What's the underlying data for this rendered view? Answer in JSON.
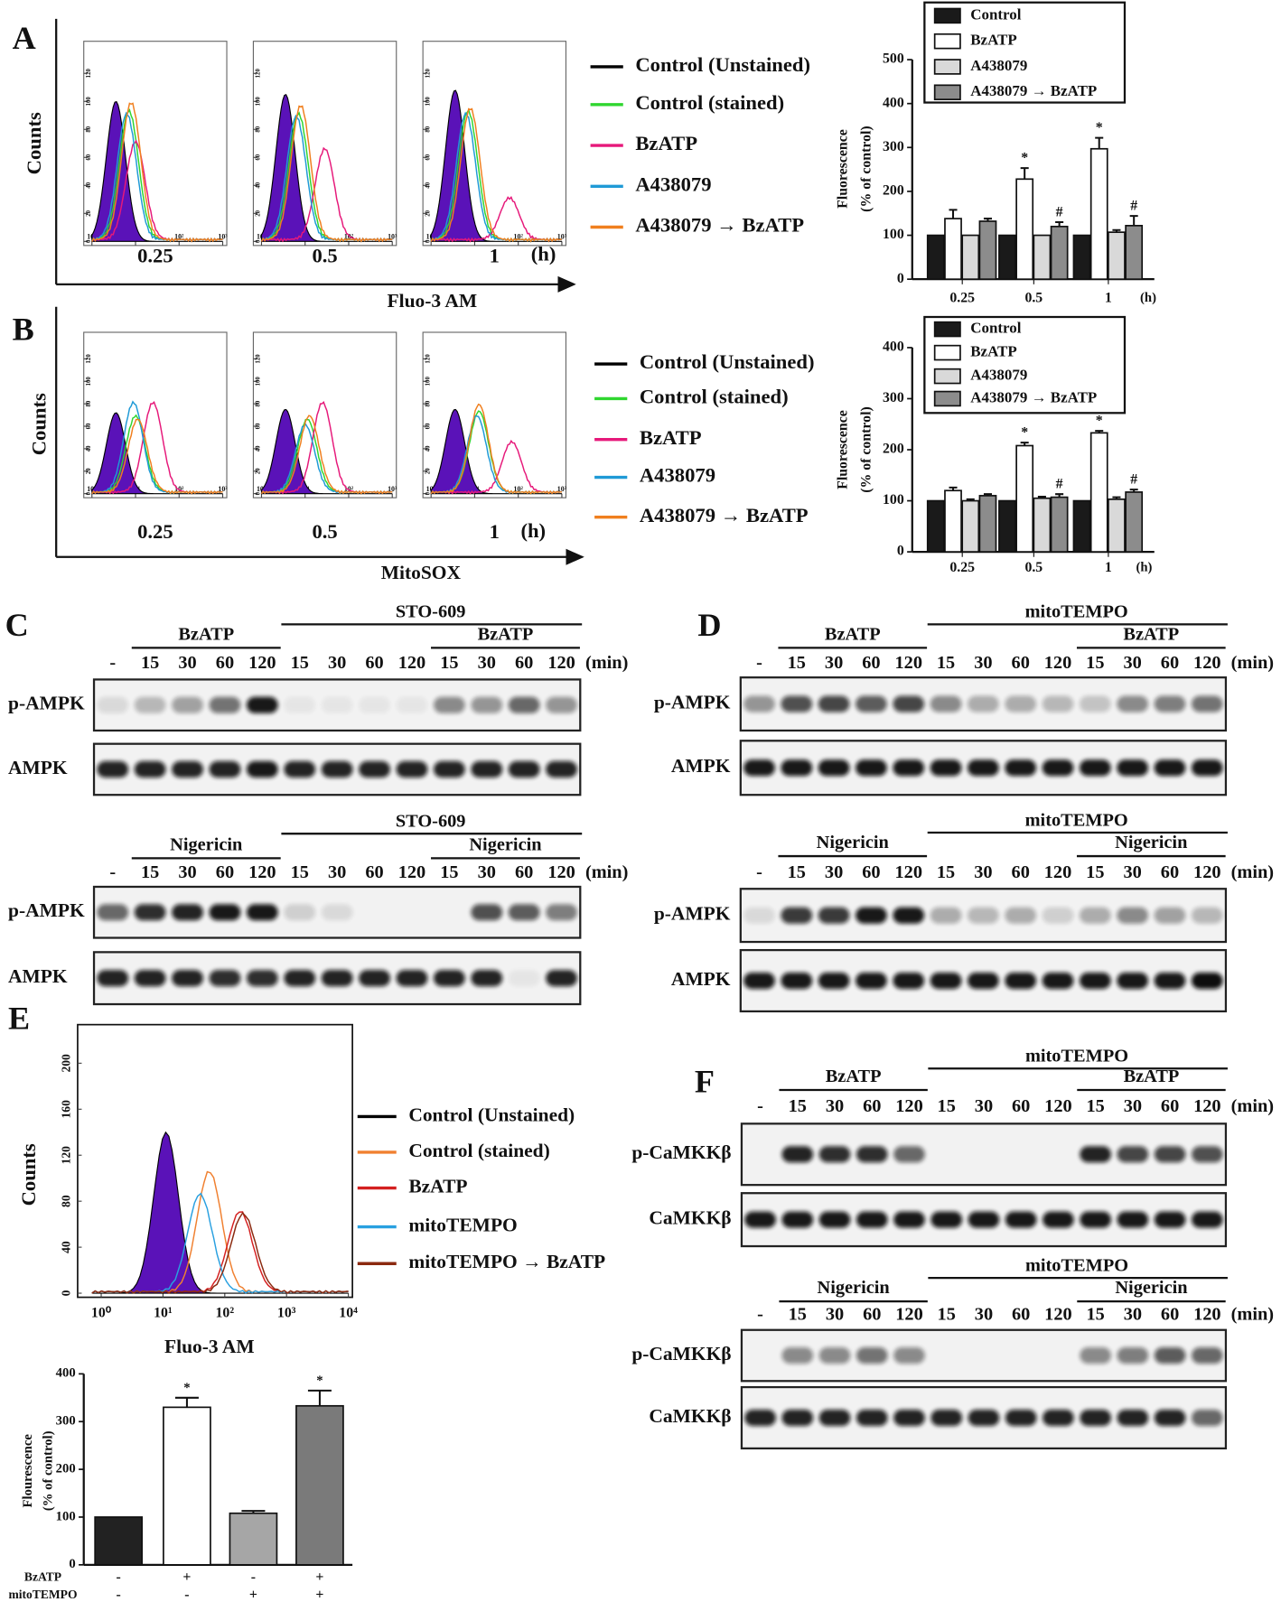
{
  "flow": [
    {
      "panel": "A",
      "y_label": "Counts",
      "x_label": "Fluo-3 AM",
      "time_unit": "(h)",
      "xlim": [
        0,
        3
      ],
      "ylim": [
        0,
        140
      ],
      "xticks": [
        {
          "value": 0,
          "label": "10⁰"
        },
        {
          "value": 1,
          "label": "10¹"
        },
        {
          "value": 2,
          "label": "10²"
        },
        {
          "value": 3,
          "label": "10³"
        }
      ],
      "yticks": [
        0,
        20,
        40,
        60,
        80,
        100,
        120
      ],
      "legend": [
        {
          "name": "Control (Unstained)",
          "color": "#000000"
        },
        {
          "name": "Control (stained)",
          "color": "#2fd62f"
        },
        {
          "name": "BzATP",
          "color": "#e6197a"
        },
        {
          "name": "A438079",
          "color": "#1f9ad6"
        },
        {
          "name": "A438079 → BzATP",
          "color": "#f07f1e"
        }
      ],
      "plots": [
        {
          "time": "0.25",
          "peaks": [
            0.55,
            0.85,
            1.0,
            0.8,
            0.9
          ],
          "heights": [
            100,
            92,
            70,
            90,
            98
          ]
        },
        {
          "time": "0.5",
          "peaks": [
            0.55,
            0.85,
            1.45,
            0.8,
            0.9
          ],
          "heights": [
            105,
            90,
            65,
            88,
            96
          ]
        },
        {
          "time": "1",
          "peaks": [
            0.55,
            0.85,
            1.8,
            0.8,
            0.9
          ],
          "heights": [
            108,
            92,
            30,
            90,
            94
          ]
        }
      ]
    },
    {
      "panel": "B",
      "y_label": "Counts",
      "x_label": "MitoSOX",
      "time_unit": "(h)",
      "xlim": [
        0,
        3
      ],
      "ylim": [
        0,
        140
      ],
      "xticks": [
        {
          "value": 0,
          "label": "10⁰"
        },
        {
          "value": 1,
          "label": "10¹"
        },
        {
          "value": 2,
          "label": "10²"
        },
        {
          "value": 3,
          "label": "10³"
        }
      ],
      "yticks": [
        0,
        20,
        40,
        60,
        80,
        100,
        120
      ],
      "legend": [
        {
          "name": "Control (Unstained)",
          "color": "#000000"
        },
        {
          "name": "Control (stained)",
          "color": "#2fd62f"
        },
        {
          "name": "BzATP",
          "color": "#e6197a"
        },
        {
          "name": "A438079",
          "color": "#1f9ad6"
        },
        {
          "name": "A438079 → BzATP",
          "color": "#f07f1e"
        }
      ],
      "plots": [
        {
          "time": "0.25",
          "peaks": [
            0.55,
            1.0,
            1.4,
            0.95,
            1.05
          ],
          "heights": [
            72,
            68,
            80,
            80,
            65
          ]
        },
        {
          "time": "0.5",
          "peaks": [
            0.55,
            1.05,
            1.4,
            1.0,
            1.1
          ],
          "heights": [
            75,
            65,
            80,
            60,
            68
          ]
        },
        {
          "time": "1",
          "peaks": [
            0.55,
            1.1,
            1.85,
            1.05,
            1.1
          ],
          "heights": [
            75,
            72,
            45,
            68,
            78
          ]
        }
      ]
    },
    {
      "panel": "E",
      "y_label": "Counts",
      "x_label": "Fluo-3 AM",
      "xlim": [
        -0.15,
        4
      ],
      "ylim": [
        0,
        230
      ],
      "xticks": [
        {
          "value": 0,
          "label": "10⁰"
        },
        {
          "value": 1,
          "label": "10¹"
        },
        {
          "value": 2,
          "label": "10²"
        },
        {
          "value": 3,
          "label": "10³"
        },
        {
          "value": 4,
          "label": "10⁴"
        }
      ],
      "yticks": [
        0,
        40,
        80,
        120,
        160,
        200
      ],
      "legend": [
        {
          "name": "Control (Unstained)",
          "color": "#000000"
        },
        {
          "name": "Control (stained)",
          "color": "#f08030"
        },
        {
          "name": "BzATP",
          "color": "#d42020"
        },
        {
          "name": "mitoTEMPO",
          "color": "#29a0e0"
        },
        {
          "name": "mitoTEMPO → BzATP",
          "color": "#8b2a10"
        }
      ],
      "plots": [
        {
          "peaks": [
            1.05,
            1.75,
            2.25,
            1.6,
            2.3
          ],
          "heights": [
            140,
            105,
            70,
            85,
            68
          ]
        }
      ]
    }
  ],
  "chart_data": [
    {
      "type": "bar",
      "y_label": [
        "Fluorescence",
        "(% of control)"
      ],
      "x_unit": "(h)",
      "categories": [
        "0.25",
        "0.5",
        "1"
      ],
      "ylim": [
        0,
        500
      ],
      "yticks": [
        0,
        100,
        200,
        300,
        400,
        500
      ],
      "series": [
        {
          "name": "Control",
          "color": "#1a1a1a",
          "values": [
            100,
            100,
            100
          ]
        },
        {
          "name": "BzATP",
          "color": "#ffffff",
          "values": [
            138,
            228,
            297
          ],
          "errors": [
            20,
            25,
            25
          ],
          "marks": [
            null,
            "*",
            "*"
          ]
        },
        {
          "name": "A438079",
          "color": "#d9d9d9",
          "values": [
            100,
            100,
            107
          ],
          "errors": [
            null,
            null,
            5
          ]
        },
        {
          "name": "A438079 → BzATP",
          "color": "#8c8c8c",
          "values": [
            132,
            120,
            122
          ],
          "errors": [
            6,
            10,
            22
          ],
          "marks": [
            null,
            "#",
            "#"
          ]
        }
      ]
    },
    {
      "type": "bar",
      "y_label": [
        "Fluorescence",
        "(% of control)"
      ],
      "x_unit": "(h)",
      "categories": [
        "0.25",
        "0.5",
        "1"
      ],
      "ylim": [
        0,
        400
      ],
      "yticks": [
        0,
        100,
        200,
        300,
        400
      ],
      "series": [
        {
          "name": "Control",
          "color": "#1a1a1a",
          "values": [
            100,
            100,
            100
          ]
        },
        {
          "name": "BzATP",
          "color": "#ffffff",
          "values": [
            120,
            208,
            233
          ],
          "errors": [
            6,
            6,
            4
          ],
          "marks": [
            null,
            "*",
            "*"
          ]
        },
        {
          "name": "A438079",
          "color": "#d9d9d9",
          "values": [
            100,
            105,
            103
          ],
          "errors": [
            3,
            3,
            4
          ]
        },
        {
          "name": "A438079 → BzATP",
          "color": "#8c8c8c",
          "values": [
            110,
            107,
            117
          ],
          "errors": [
            3,
            6,
            5
          ],
          "marks": [
            null,
            "#",
            "#"
          ]
        }
      ]
    },
    {
      "type": "bar",
      "y_label": [
        "Flourescence",
        "(% of control)"
      ],
      "values": [
        100,
        330,
        108,
        333
      ],
      "errors": [
        null,
        20,
        5,
        32
      ],
      "marks": [
        null,
        "*",
        null,
        "*"
      ],
      "colors": [
        "#222222",
        "#ffffff",
        "#a6a6a6",
        "#7a7a7a"
      ],
      "ylim": [
        0,
        400
      ],
      "yticks": [
        0,
        100,
        200,
        300,
        400
      ],
      "conditions": [
        {
          "name": "BzATP",
          "signs": [
            "-",
            "+",
            "-",
            "+"
          ]
        },
        {
          "name": "mitoTEMPO",
          "signs": [
            "-",
            "-",
            "+",
            "+"
          ]
        }
      ]
    }
  ],
  "blots": [
    {
      "panel": "C",
      "blocks": [
        {
          "treatment": "BzATP",
          "inhibitor": "STO-609",
          "unit": "(min)",
          "lanes": [
            "-",
            "15",
            "30",
            "60",
            "120",
            "15",
            "30",
            "60",
            "120",
            "15",
            "30",
            "60",
            "120"
          ],
          "rows": [
            {
              "label": "p-AMPK",
              "intensity": [
                0.1,
                0.25,
                0.35,
                0.55,
                0.95,
                0.05,
                0.05,
                0.05,
                0.05,
                0.45,
                0.4,
                0.6,
                0.4
              ]
            },
            {
              "label": "AMPK",
              "intensity": [
                0.9,
                0.9,
                0.9,
                0.9,
                0.95,
                0.9,
                0.9,
                0.9,
                0.9,
                0.9,
                0.9,
                0.9,
                0.9
              ]
            }
          ]
        },
        {
          "treatment": "Nigericin",
          "inhibitor": "STO-609",
          "unit": "(min)",
          "lanes": [
            "-",
            "15",
            "30",
            "60",
            "120",
            "15",
            "30",
            "60",
            "120",
            "15",
            "30",
            "60",
            "120"
          ],
          "rows": [
            {
              "label": "p-AMPK",
              "intensity": [
                0.6,
                0.85,
                0.9,
                0.95,
                0.95,
                0.15,
                0.1,
                0,
                0,
                0,
                0.7,
                0.65,
                0.5
              ]
            },
            {
              "label": "AMPK",
              "intensity": [
                0.9,
                0.9,
                0.9,
                0.85,
                0.85,
                0.9,
                0.9,
                0.9,
                0.9,
                0.9,
                0.9,
                0.05,
                0.9
              ]
            }
          ]
        }
      ]
    },
    {
      "panel": "D",
      "blocks": [
        {
          "treatment": "BzATP",
          "inhibitor": "mitoTEMPO",
          "unit": "(min)",
          "lanes": [
            "-",
            "15",
            "30",
            "60",
            "120",
            "15",
            "30",
            "60",
            "120",
            "15",
            "30",
            "60",
            "120"
          ],
          "rows": [
            {
              "label": "p-AMPK",
              "intensity": [
                0.4,
                0.7,
                0.75,
                0.65,
                0.75,
                0.45,
                0.3,
                0.3,
                0.25,
                0.2,
                0.45,
                0.5,
                0.55
              ]
            },
            {
              "label": "AMPK",
              "intensity": [
                0.95,
                0.95,
                0.95,
                0.95,
                0.95,
                0.95,
                0.95,
                0.95,
                0.95,
                0.95,
                0.95,
                0.95,
                0.95
              ]
            }
          ]
        },
        {
          "treatment": "Nigericin",
          "inhibitor": "mitoTEMPO",
          "unit": "(min)",
          "lanes": [
            "-",
            "15",
            "30",
            "60",
            "120",
            "15",
            "30",
            "60",
            "120",
            "15",
            "30",
            "60",
            "120"
          ],
          "rows": [
            {
              "label": "p-AMPK",
              "intensity": [
                0.1,
                0.8,
                0.8,
                0.95,
                0.95,
                0.3,
                0.25,
                0.3,
                0.15,
                0.3,
                0.45,
                0.35,
                0.25
              ]
            },
            {
              "label": "AMPK",
              "intensity": [
                0.95,
                0.95,
                0.95,
                0.95,
                0.95,
                0.95,
                0.95,
                0.95,
                0.95,
                0.95,
                0.95,
                0.95,
                1
              ]
            }
          ]
        }
      ]
    },
    {
      "panel": "F",
      "blocks": [
        {
          "treatment": "BzATP",
          "inhibitor": "mitoTEMPO",
          "unit": "(min)",
          "lanes": [
            "-",
            "15",
            "30",
            "60",
            "120",
            "15",
            "30",
            "60",
            "120",
            "15",
            "30",
            "60",
            "120"
          ],
          "rows": [
            {
              "label": "p-CaMKKβ",
              "intensity": [
                0,
                0.9,
                0.85,
                0.85,
                0.6,
                0,
                0,
                0,
                0,
                0.9,
                0.75,
                0.75,
                0.7
              ]
            },
            {
              "label": "CaMKKβ",
              "intensity": [
                0.95,
                0.95,
                0.95,
                0.95,
                0.95,
                0.95,
                0.95,
                0.95,
                0.95,
                0.95,
                0.95,
                0.95,
                0.95
              ]
            }
          ]
        },
        {
          "treatment": "Nigericin",
          "inhibitor": "mitoTEMPO",
          "unit": "(min)",
          "lanes": [
            "-",
            "15",
            "30",
            "60",
            "120",
            "15",
            "30",
            "60",
            "120",
            "15",
            "30",
            "60",
            "120"
          ],
          "rows": [
            {
              "label": "p-CaMKKβ",
              "intensity": [
                0,
                0.45,
                0.45,
                0.55,
                0.45,
                0,
                0,
                0,
                0,
                0.45,
                0.5,
                0.65,
                0.6
              ]
            },
            {
              "label": "CaMKKβ",
              "intensity": [
                0.9,
                0.9,
                0.9,
                0.9,
                0.9,
                0.9,
                0.9,
                0.9,
                0.9,
                0.9,
                0.9,
                0.9,
                0.6
              ]
            }
          ]
        }
      ]
    }
  ]
}
